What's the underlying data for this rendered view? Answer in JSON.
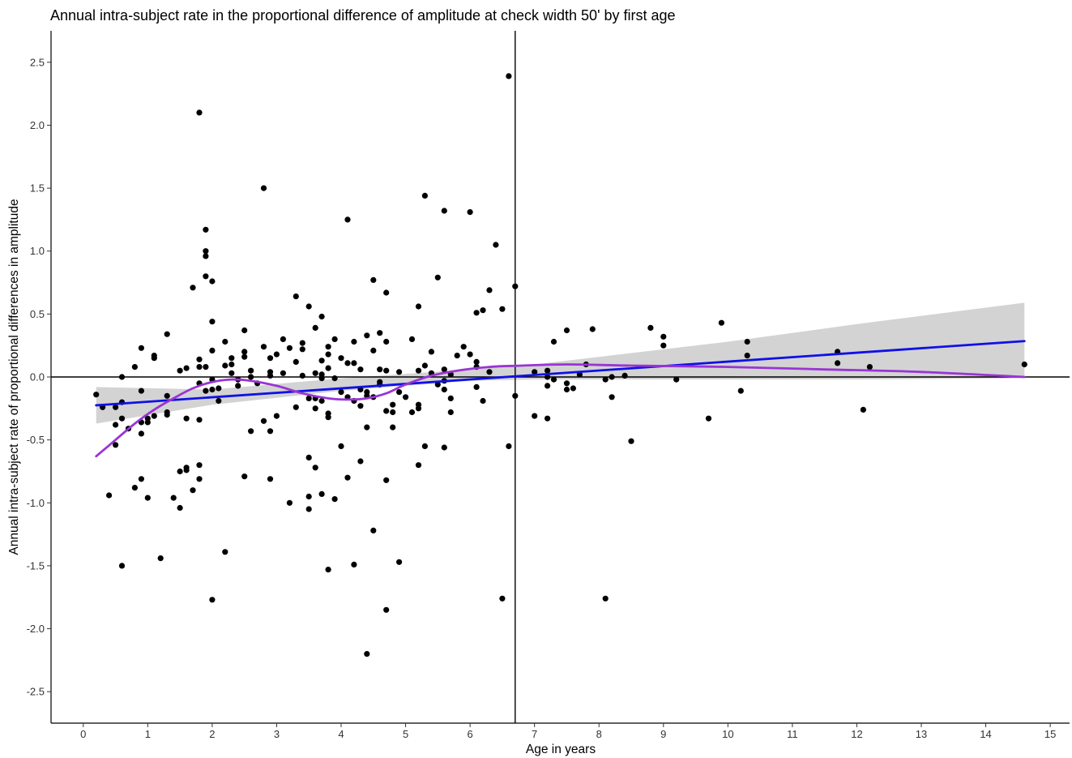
{
  "chart_data": {
    "type": "scatter",
    "title": "Annual intra-subject rate in the proportional difference of amplitude at check width 50' by first age",
    "xlabel": "Age in years",
    "ylabel": "Annual intra-subject rate of proportional differences in amplitude",
    "xlim": [
      -0.5,
      15.3
    ],
    "ylim": [
      -2.75,
      2.75
    ],
    "xticks": [
      0,
      1,
      2,
      3,
      4,
      5,
      6,
      7,
      8,
      9,
      10,
      11,
      12,
      13,
      14,
      15
    ],
    "yticks": [
      2.5,
      2.0,
      1.5,
      1.0,
      0.5,
      0.0,
      -0.5,
      -1.0,
      -1.5,
      -2.0,
      -2.5
    ],
    "ytick_labels": [
      "2.5",
      "2.0",
      "1.5",
      "1.0",
      "0.5",
      "0.0",
      "-0.5",
      "-1.0",
      "-1.5",
      "-2.0",
      "-2.5"
    ],
    "grid": false,
    "legend": "none",
    "reference_lines": {
      "horizontal_y": 0.0,
      "vertical_x": 6.7
    },
    "points": [
      [
        0.2,
        -0.14
      ],
      [
        0.3,
        -0.24
      ],
      [
        0.4,
        -0.94
      ],
      [
        0.5,
        -0.24
      ],
      [
        0.5,
        -0.38
      ],
      [
        0.5,
        -0.54
      ],
      [
        0.6,
        0.0
      ],
      [
        0.6,
        -0.2
      ],
      [
        0.6,
        -0.33
      ],
      [
        0.6,
        -1.5
      ],
      [
        0.7,
        -0.41
      ],
      [
        0.8,
        0.08
      ],
      [
        0.8,
        -0.88
      ],
      [
        0.9,
        0.23
      ],
      [
        0.9,
        -0.11
      ],
      [
        0.9,
        -0.36
      ],
      [
        0.9,
        -0.45
      ],
      [
        0.9,
        -0.81
      ],
      [
        1.0,
        -0.33
      ],
      [
        1.0,
        -0.36
      ],
      [
        1.0,
        -0.96
      ],
      [
        1.1,
        0.17
      ],
      [
        1.1,
        0.15
      ],
      [
        1.1,
        -0.31
      ],
      [
        1.2,
        -1.44
      ],
      [
        1.3,
        0.34
      ],
      [
        1.3,
        -0.15
      ],
      [
        1.3,
        -0.28
      ],
      [
        1.3,
        -0.3
      ],
      [
        1.4,
        -0.96
      ],
      [
        1.5,
        0.05
      ],
      [
        1.5,
        -0.75
      ],
      [
        1.5,
        -1.04
      ],
      [
        1.6,
        0.07
      ],
      [
        1.6,
        -0.33
      ],
      [
        1.6,
        -0.72
      ],
      [
        1.6,
        -0.74
      ],
      [
        1.7,
        0.71
      ],
      [
        1.7,
        -0.9
      ],
      [
        1.8,
        2.1
      ],
      [
        1.8,
        0.14
      ],
      [
        1.8,
        0.08
      ],
      [
        1.8,
        -0.05
      ],
      [
        1.8,
        -0.34
      ],
      [
        1.8,
        -0.7
      ],
      [
        1.8,
        -0.81
      ],
      [
        1.9,
        1.17
      ],
      [
        1.9,
        1.0
      ],
      [
        1.9,
        0.96
      ],
      [
        1.9,
        0.8
      ],
      [
        1.9,
        0.08
      ],
      [
        1.9,
        -0.11
      ],
      [
        2.0,
        0.76
      ],
      [
        2.0,
        0.44
      ],
      [
        2.0,
        0.21
      ],
      [
        2.0,
        -0.02
      ],
      [
        2.0,
        -0.1
      ],
      [
        2.0,
        -1.77
      ],
      [
        2.1,
        -0.09
      ],
      [
        2.1,
        -0.19
      ],
      [
        2.2,
        0.28
      ],
      [
        2.2,
        0.09
      ],
      [
        2.2,
        -1.39
      ],
      [
        2.3,
        0.15
      ],
      [
        2.3,
        0.1
      ],
      [
        2.3,
        0.03
      ],
      [
        2.4,
        -0.07
      ],
      [
        2.4,
        -0.02
      ],
      [
        2.5,
        0.37
      ],
      [
        2.5,
        0.2
      ],
      [
        2.5,
        0.16
      ],
      [
        2.5,
        -0.79
      ],
      [
        2.6,
        0.05
      ],
      [
        2.6,
        0.0
      ],
      [
        2.6,
        -0.43
      ],
      [
        2.7,
        -0.05
      ],
      [
        2.8,
        1.5
      ],
      [
        2.8,
        0.24
      ],
      [
        2.8,
        -0.35
      ],
      [
        2.9,
        0.15
      ],
      [
        2.9,
        0.04
      ],
      [
        2.9,
        0.01
      ],
      [
        2.9,
        -0.43
      ],
      [
        2.9,
        -0.81
      ],
      [
        3.0,
        0.18
      ],
      [
        3.0,
        -0.31
      ],
      [
        3.1,
        0.3
      ],
      [
        3.1,
        0.03
      ],
      [
        3.2,
        0.23
      ],
      [
        3.2,
        -1.0
      ],
      [
        3.3,
        0.64
      ],
      [
        3.3,
        0.12
      ],
      [
        3.3,
        -0.24
      ],
      [
        3.4,
        0.27
      ],
      [
        3.4,
        0.22
      ],
      [
        3.4,
        0.01
      ],
      [
        3.5,
        0.56
      ],
      [
        3.5,
        -0.17
      ],
      [
        3.5,
        -0.64
      ],
      [
        3.5,
        -0.95
      ],
      [
        3.5,
        -1.05
      ],
      [
        3.6,
        0.39
      ],
      [
        3.6,
        0.03
      ],
      [
        3.6,
        -0.17
      ],
      [
        3.6,
        -0.25
      ],
      [
        3.6,
        -0.72
      ],
      [
        3.7,
        0.48
      ],
      [
        3.7,
        0.13
      ],
      [
        3.7,
        0.02
      ],
      [
        3.7,
        -0.01
      ],
      [
        3.7,
        -0.19
      ],
      [
        3.7,
        -0.93
      ],
      [
        3.8,
        0.24
      ],
      [
        3.8,
        0.18
      ],
      [
        3.8,
        0.07
      ],
      [
        3.8,
        -0.29
      ],
      [
        3.8,
        -0.32
      ],
      [
        3.8,
        -1.53
      ],
      [
        3.9,
        0.3
      ],
      [
        3.9,
        -0.01
      ],
      [
        3.9,
        -0.97
      ],
      [
        4.0,
        0.15
      ],
      [
        4.0,
        -0.12
      ],
      [
        4.0,
        -0.55
      ],
      [
        4.1,
        1.25
      ],
      [
        4.1,
        0.11
      ],
      [
        4.1,
        -0.16
      ],
      [
        4.1,
        -0.8
      ],
      [
        4.2,
        0.28
      ],
      [
        4.2,
        0.11
      ],
      [
        4.2,
        -0.19
      ],
      [
        4.2,
        -1.49
      ],
      [
        4.3,
        0.06
      ],
      [
        4.3,
        -0.1
      ],
      [
        4.3,
        -0.23
      ],
      [
        4.3,
        -0.67
      ],
      [
        4.4,
        0.33
      ],
      [
        4.4,
        -0.12
      ],
      [
        4.4,
        -0.15
      ],
      [
        4.4,
        -0.4
      ],
      [
        4.4,
        -2.2
      ],
      [
        4.5,
        0.77
      ],
      [
        4.5,
        0.21
      ],
      [
        4.5,
        -0.16
      ],
      [
        4.5,
        -1.22
      ],
      [
        4.6,
        0.35
      ],
      [
        4.6,
        0.06
      ],
      [
        4.6,
        -0.04
      ],
      [
        4.6,
        -0.06
      ],
      [
        4.7,
        0.67
      ],
      [
        4.7,
        0.28
      ],
      [
        4.7,
        0.05
      ],
      [
        4.7,
        -0.27
      ],
      [
        4.7,
        -0.82
      ],
      [
        4.7,
        -1.85
      ],
      [
        4.8,
        -0.28
      ],
      [
        4.8,
        -0.4
      ],
      [
        4.8,
        -0.22
      ],
      [
        4.9,
        0.04
      ],
      [
        4.9,
        -0.12
      ],
      [
        4.9,
        -1.47
      ],
      [
        5.0,
        -0.16
      ],
      [
        5.1,
        0.3
      ],
      [
        5.1,
        -0.28
      ],
      [
        5.2,
        0.56
      ],
      [
        5.2,
        0.05
      ],
      [
        5.2,
        -0.22
      ],
      [
        5.2,
        -0.25
      ],
      [
        5.2,
        -0.7
      ],
      [
        5.3,
        1.44
      ],
      [
        5.3,
        0.09
      ],
      [
        5.3,
        -0.55
      ],
      [
        5.4,
        0.2
      ],
      [
        5.4,
        0.03
      ],
      [
        5.5,
        0.79
      ],
      [
        5.5,
        -0.06
      ],
      [
        5.6,
        1.32
      ],
      [
        5.6,
        0.06
      ],
      [
        5.6,
        -0.03
      ],
      [
        5.6,
        -0.1
      ],
      [
        5.6,
        -0.56
      ],
      [
        5.7,
        0.02
      ],
      [
        5.7,
        -0.17
      ],
      [
        5.7,
        -0.28
      ],
      [
        5.8,
        0.17
      ],
      [
        5.9,
        0.24
      ],
      [
        6.0,
        1.31
      ],
      [
        6.0,
        0.18
      ],
      [
        6.1,
        0.51
      ],
      [
        6.1,
        0.12
      ],
      [
        6.1,
        0.08
      ],
      [
        6.1,
        -0.08
      ],
      [
        6.2,
        0.53
      ],
      [
        6.2,
        -0.19
      ],
      [
        6.3,
        0.69
      ],
      [
        6.3,
        0.04
      ],
      [
        6.4,
        1.05
      ],
      [
        6.5,
        0.54
      ],
      [
        6.5,
        -1.76
      ],
      [
        6.6,
        2.39
      ],
      [
        6.6,
        -0.55
      ],
      [
        6.7,
        0.72
      ],
      [
        6.7,
        -0.15
      ],
      [
        7.0,
        0.04
      ],
      [
        7.0,
        -0.31
      ],
      [
        7.2,
        0.05
      ],
      [
        7.2,
        0.0
      ],
      [
        7.2,
        -0.07
      ],
      [
        7.2,
        -0.33
      ],
      [
        7.3,
        0.28
      ],
      [
        7.3,
        -0.02
      ],
      [
        7.5,
        0.37
      ],
      [
        7.5,
        -0.05
      ],
      [
        7.5,
        -0.1
      ],
      [
        7.6,
        -0.09
      ],
      [
        7.7,
        0.02
      ],
      [
        7.8,
        0.1
      ],
      [
        7.9,
        0.38
      ],
      [
        8.1,
        -0.02
      ],
      [
        8.1,
        -1.76
      ],
      [
        8.2,
        0.0
      ],
      [
        8.2,
        -0.16
      ],
      [
        8.4,
        0.01
      ],
      [
        8.5,
        -0.51
      ],
      [
        8.8,
        0.39
      ],
      [
        9.0,
        0.32
      ],
      [
        9.0,
        0.25
      ],
      [
        9.2,
        -0.02
      ],
      [
        9.7,
        -0.33
      ],
      [
        9.9,
        0.43
      ],
      [
        10.2,
        -0.11
      ],
      [
        10.3,
        0.28
      ],
      [
        10.3,
        0.17
      ],
      [
        11.7,
        0.2
      ],
      [
        11.7,
        0.11
      ],
      [
        12.1,
        -0.26
      ],
      [
        12.2,
        0.08
      ],
      [
        14.6,
        0.1
      ]
    ],
    "linear_fit": {
      "color": "#1010e6",
      "x": [
        0.2,
        14.6
      ],
      "y": [
        -0.225,
        0.285
      ]
    },
    "confidence_band": {
      "color": "#d3d3d3",
      "x": [
        0.2,
        2.0,
        4.0,
        6.0,
        7.0,
        8.0,
        10.0,
        12.0,
        14.6
      ],
      "lower": [
        -0.37,
        -0.22,
        -0.11,
        -0.03,
        -0.02,
        -0.02,
        -0.02,
        -0.02,
        -0.01
      ],
      "upper": [
        -0.08,
        -0.1,
        -0.01,
        0.06,
        0.1,
        0.16,
        0.28,
        0.42,
        0.59
      ]
    },
    "smooth_curve": {
      "color": "#9a34d4",
      "x": [
        0.2,
        0.5,
        0.8,
        1.1,
        1.4,
        1.7,
        2.0,
        2.3,
        2.6,
        3.0,
        3.4,
        3.8,
        4.1,
        4.4,
        4.7,
        5.0,
        5.4,
        5.8,
        6.3,
        6.8,
        7.5,
        8.5,
        10.0,
        11.5,
        13.0,
        14.6
      ],
      "y": [
        -0.63,
        -0.5,
        -0.37,
        -0.26,
        -0.17,
        -0.09,
        -0.04,
        -0.02,
        -0.03,
        -0.07,
        -0.13,
        -0.17,
        -0.18,
        -0.17,
        -0.13,
        -0.06,
        0.01,
        0.05,
        0.08,
        0.09,
        0.1,
        0.09,
        0.08,
        0.06,
        0.04,
        0.0
      ]
    }
  }
}
